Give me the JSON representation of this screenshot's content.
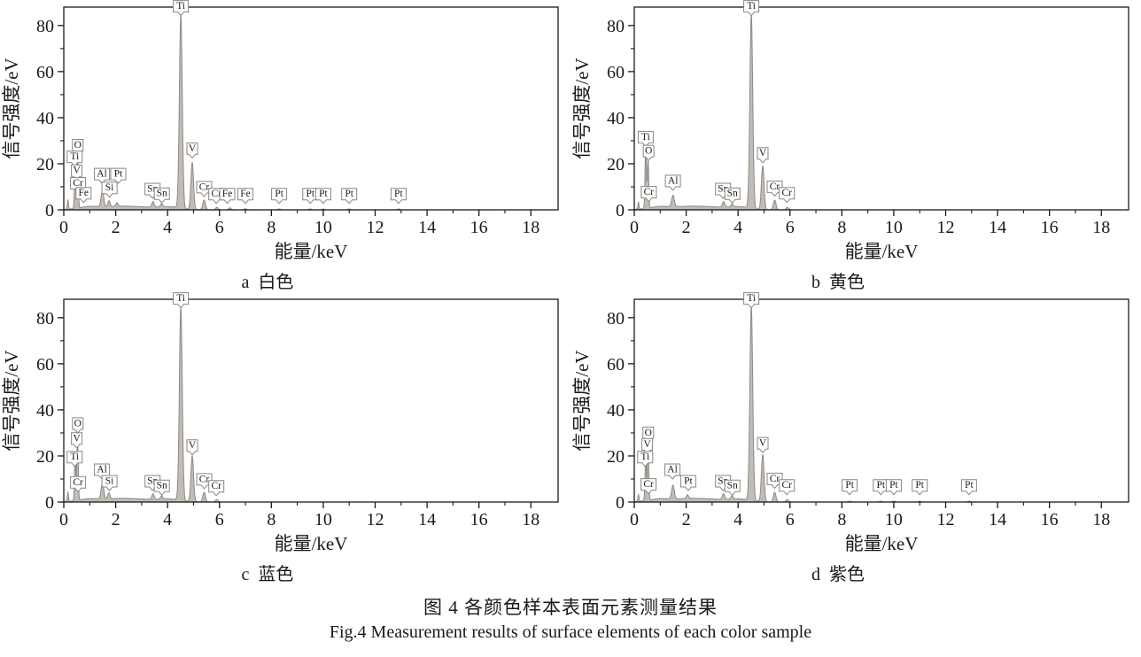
{
  "figure": {
    "caption_zh": "图 4   各颜色样本表面元素测量结果",
    "caption_en": "Fig.4 Measurement results of surface elements of each color sample"
  },
  "colors": {
    "background": "#ffffff",
    "axis_color": "#1a1a1a",
    "text_color": "#1a1a1a",
    "spectrum_fill": "#c2bcb6",
    "spectrum_stroke": "#8f8983",
    "label_box_fill": "#ffffff",
    "label_box_border": "#8a8580"
  },
  "chart_data": [
    {
      "type": "area",
      "panel": "a",
      "subcaption": "a  白色",
      "sample_color_zh": "白色",
      "xlabel": "能量/keV",
      "ylabel": "信号强度/eV",
      "xlim": [
        0,
        19
      ],
      "ylim": [
        0,
        88
      ],
      "x_major_ticks": [
        0,
        2,
        4,
        6,
        8,
        10,
        12,
        14,
        16,
        18
      ],
      "x_minor_ticks": [
        1,
        3,
        5,
        7,
        9,
        11,
        13,
        15,
        17
      ],
      "y_major_ticks": [
        0,
        20,
        40,
        60,
        80
      ],
      "y_minor_ticks": [
        10,
        30,
        50,
        70
      ],
      "peak_labels": [
        {
          "el": "O",
          "x": 0.54,
          "y": 24
        },
        {
          "el": "Ti",
          "x": 0.42,
          "y": 19
        },
        {
          "el": "V",
          "x": 0.5,
          "y": 13
        },
        {
          "el": "Cr",
          "x": 0.55,
          "y": 7.5
        },
        {
          "el": "Fe",
          "x": 0.76,
          "y": 3.2
        },
        {
          "el": "Al",
          "x": 1.47,
          "y": 11.5
        },
        {
          "el": "Si",
          "x": 1.76,
          "y": 5.5
        },
        {
          "el": "Pt",
          "x": 2.1,
          "y": 11.5
        },
        {
          "el": "Sn",
          "x": 3.42,
          "y": 5
        },
        {
          "el": "Sn",
          "x": 3.78,
          "y": 3
        },
        {
          "el": "Ti",
          "x": 4.51,
          "y": 84.3
        },
        {
          "el": "V",
          "x": 4.95,
          "y": 22.5
        },
        {
          "el": "Cr",
          "x": 5.41,
          "y": 5.8
        },
        {
          "el": "Cr",
          "x": 5.88,
          "y": 2.8
        },
        {
          "el": "Fe",
          "x": 6.3,
          "y": 2.8
        },
        {
          "el": "Fe",
          "x": 7.0,
          "y": 2.8
        },
        {
          "el": "Pt",
          "x": 8.3,
          "y": 2.8
        },
        {
          "el": "Pt",
          "x": 9.5,
          "y": 2.8
        },
        {
          "el": "Pt",
          "x": 10.0,
          "y": 2.8
        },
        {
          "el": "Pt",
          "x": 11.0,
          "y": 2.8
        },
        {
          "el": "Pt",
          "x": 12.9,
          "y": 2.8
        }
      ],
      "curve_peaks": [
        {
          "x": 0.16,
          "h": 4,
          "w": 0.02
        },
        {
          "x": 0.44,
          "h": 21,
          "w": 0.026
        },
        {
          "x": 0.53,
          "h": 26,
          "w": 0.026
        },
        {
          "x": 1.49,
          "h": 7,
          "w": 0.05
        },
        {
          "x": 1.74,
          "h": 2.6,
          "w": 0.04
        },
        {
          "x": 2.05,
          "h": 1.6,
          "w": 0.04
        },
        {
          "x": 3.44,
          "h": 2.4,
          "w": 0.045
        },
        {
          "x": 3.77,
          "h": 1.4,
          "w": 0.04
        },
        {
          "x": 4.51,
          "h": 84,
          "w": 0.055
        },
        {
          "x": 4.95,
          "h": 20.5,
          "w": 0.05
        },
        {
          "x": 5.41,
          "h": 4.2,
          "w": 0.05
        },
        {
          "x": 5.9,
          "h": 1.1,
          "w": 0.05
        },
        {
          "x": 6.4,
          "h": 0.9,
          "w": 0.05
        },
        {
          "x": 7.0,
          "h": 0.5,
          "w": 0.05
        },
        {
          "x": 8.3,
          "h": 0.4,
          "w": 0.05
        },
        {
          "x": 9.5,
          "h": 0.4,
          "w": 0.05
        },
        {
          "x": 10.0,
          "h": 0.4,
          "w": 0.05
        },
        {
          "x": 11.0,
          "h": 0.4,
          "w": 0.05
        },
        {
          "x": 12.9,
          "h": 0.4,
          "w": 0.05
        }
      ],
      "background_bumps": [
        {
          "x": 2.3,
          "h": 1.6,
          "w": 1.15
        },
        {
          "x": 0.95,
          "h": 0.7,
          "w": 0.3
        },
        {
          "x": 4.1,
          "h": 0.9,
          "w": 0.4
        }
      ]
    },
    {
      "type": "area",
      "panel": "b",
      "subcaption": "b  黄色",
      "sample_color_zh": "黄色",
      "xlabel": "能量/keV",
      "ylabel": "信号强度/eV",
      "xlim": [
        0,
        19
      ],
      "ylim": [
        0,
        88
      ],
      "x_major_ticks": [
        0,
        2,
        4,
        6,
        8,
        10,
        12,
        14,
        16,
        18
      ],
      "x_minor_ticks": [
        1,
        3,
        5,
        7,
        9,
        11,
        13,
        15,
        17
      ],
      "y_major_ticks": [
        0,
        20,
        40,
        60,
        80
      ],
      "y_minor_ticks": [
        10,
        30,
        50,
        70
      ],
      "peak_labels": [
        {
          "el": "Ti",
          "x": 0.44,
          "y": 27.5
        },
        {
          "el": "O",
          "x": 0.55,
          "y": 21.5
        },
        {
          "el": "Cr",
          "x": 0.56,
          "y": 3.6
        },
        {
          "el": "Al",
          "x": 1.49,
          "y": 8.5
        },
        {
          "el": "Sn",
          "x": 3.42,
          "y": 5
        },
        {
          "el": "Sn",
          "x": 3.78,
          "y": 3
        },
        {
          "el": "Ti",
          "x": 4.51,
          "y": 84.3
        },
        {
          "el": "V",
          "x": 4.95,
          "y": 20.5
        },
        {
          "el": "Cr",
          "x": 5.41,
          "y": 6
        },
        {
          "el": "Cr",
          "x": 5.88,
          "y": 3.2
        }
      ],
      "curve_peaks": [
        {
          "x": 0.16,
          "h": 3,
          "w": 0.02
        },
        {
          "x": 0.44,
          "h": 27,
          "w": 0.026
        },
        {
          "x": 0.53,
          "h": 22,
          "w": 0.026
        },
        {
          "x": 1.49,
          "h": 5,
          "w": 0.05
        },
        {
          "x": 3.44,
          "h": 2.4,
          "w": 0.045
        },
        {
          "x": 3.77,
          "h": 1.4,
          "w": 0.04
        },
        {
          "x": 4.51,
          "h": 84,
          "w": 0.055
        },
        {
          "x": 4.95,
          "h": 19,
          "w": 0.05
        },
        {
          "x": 5.41,
          "h": 4.2,
          "w": 0.05
        },
        {
          "x": 5.9,
          "h": 1.1,
          "w": 0.05
        }
      ],
      "background_bumps": [
        {
          "x": 2.3,
          "h": 1.6,
          "w": 1.15
        },
        {
          "x": 0.95,
          "h": 0.7,
          "w": 0.3
        },
        {
          "x": 4.1,
          "h": 0.9,
          "w": 0.4
        }
      ]
    },
    {
      "type": "area",
      "panel": "c",
      "subcaption": "c  蓝色",
      "sample_color_zh": "蓝色",
      "xlabel": "能量/keV",
      "ylabel": "信号强度/eV",
      "xlim": [
        0,
        19
      ],
      "ylim": [
        0,
        88
      ],
      "x_major_ticks": [
        0,
        2,
        4,
        6,
        8,
        10,
        12,
        14,
        16,
        18
      ],
      "x_minor_ticks": [
        1,
        3,
        5,
        7,
        9,
        11,
        13,
        15,
        17
      ],
      "y_major_ticks": [
        0,
        20,
        40,
        60,
        80
      ],
      "y_minor_ticks": [
        10,
        30,
        50,
        70
      ],
      "peak_labels": [
        {
          "el": "O",
          "x": 0.54,
          "y": 30
        },
        {
          "el": "V",
          "x": 0.5,
          "y": 23.5
        },
        {
          "el": "Ti",
          "x": 0.42,
          "y": 15.5
        },
        {
          "el": "Cr",
          "x": 0.55,
          "y": 4.5
        },
        {
          "el": "Al",
          "x": 1.47,
          "y": 10
        },
        {
          "el": "Si",
          "x": 1.76,
          "y": 5
        },
        {
          "el": "Sn",
          "x": 3.42,
          "y": 5
        },
        {
          "el": "Sn",
          "x": 3.78,
          "y": 3
        },
        {
          "el": "Ti",
          "x": 4.51,
          "y": 84.3
        },
        {
          "el": "V",
          "x": 4.95,
          "y": 20.5
        },
        {
          "el": "Cr",
          "x": 5.41,
          "y": 5.8
        },
        {
          "el": "Cr",
          "x": 5.88,
          "y": 2.8
        }
      ],
      "curve_peaks": [
        {
          "x": 0.16,
          "h": 4,
          "w": 0.02
        },
        {
          "x": 0.44,
          "h": 19,
          "w": 0.026
        },
        {
          "x": 0.53,
          "h": 28,
          "w": 0.026
        },
        {
          "x": 1.49,
          "h": 7,
          "w": 0.05
        },
        {
          "x": 1.74,
          "h": 2.6,
          "w": 0.04
        },
        {
          "x": 3.44,
          "h": 2.4,
          "w": 0.045
        },
        {
          "x": 3.77,
          "h": 1.4,
          "w": 0.04
        },
        {
          "x": 4.51,
          "h": 84,
          "w": 0.055
        },
        {
          "x": 4.95,
          "h": 20,
          "w": 0.05
        },
        {
          "x": 5.41,
          "h": 4.2,
          "w": 0.05
        },
        {
          "x": 5.9,
          "h": 1.1,
          "w": 0.05
        }
      ],
      "background_bumps": [
        {
          "x": 2.3,
          "h": 1.6,
          "w": 1.15
        },
        {
          "x": 0.95,
          "h": 0.7,
          "w": 0.3
        },
        {
          "x": 4.1,
          "h": 0.9,
          "w": 0.4
        }
      ]
    },
    {
      "type": "area",
      "panel": "d",
      "subcaption": "d  紫色",
      "sample_color_zh": "紫色",
      "xlabel": "能量/keV",
      "ylabel": "信号强度/eV",
      "xlim": [
        0,
        19
      ],
      "ylim": [
        0,
        88
      ],
      "x_major_ticks": [
        0,
        2,
        4,
        6,
        8,
        10,
        12,
        14,
        16,
        18
      ],
      "x_minor_ticks": [
        1,
        3,
        5,
        7,
        9,
        11,
        13,
        15,
        17
      ],
      "y_major_ticks": [
        0,
        20,
        40,
        60,
        80
      ],
      "y_minor_ticks": [
        10,
        30,
        50,
        70
      ],
      "peak_labels": [
        {
          "el": "O",
          "x": 0.54,
          "y": 26
        },
        {
          "el": "V",
          "x": 0.5,
          "y": 21
        },
        {
          "el": "Ti",
          "x": 0.42,
          "y": 15.5
        },
        {
          "el": "Cr",
          "x": 0.55,
          "y": 3.6
        },
        {
          "el": "Al",
          "x": 1.47,
          "y": 10
        },
        {
          "el": "Pt",
          "x": 2.08,
          "y": 5
        },
        {
          "el": "Sn",
          "x": 3.42,
          "y": 5
        },
        {
          "el": "Sn",
          "x": 3.78,
          "y": 3
        },
        {
          "el": "Ti",
          "x": 4.51,
          "y": 84.3
        },
        {
          "el": "V",
          "x": 4.95,
          "y": 21.5
        },
        {
          "el": "Cr",
          "x": 5.41,
          "y": 6
        },
        {
          "el": "Cr",
          "x": 5.88,
          "y": 3.2
        },
        {
          "el": "Pt",
          "x": 8.3,
          "y": 3.2
        },
        {
          "el": "Pt",
          "x": 9.5,
          "y": 3.2
        },
        {
          "el": "Pt",
          "x": 10.0,
          "y": 3.2
        },
        {
          "el": "Pt",
          "x": 11.0,
          "y": 3.2
        },
        {
          "el": "Pt",
          "x": 12.9,
          "y": 3.2
        }
      ],
      "curve_peaks": [
        {
          "x": 0.16,
          "h": 3,
          "w": 0.02
        },
        {
          "x": 0.44,
          "h": 18,
          "w": 0.026
        },
        {
          "x": 0.53,
          "h": 25,
          "w": 0.026
        },
        {
          "x": 1.49,
          "h": 6,
          "w": 0.05
        },
        {
          "x": 2.05,
          "h": 1.6,
          "w": 0.04
        },
        {
          "x": 3.44,
          "h": 2.4,
          "w": 0.045
        },
        {
          "x": 3.77,
          "h": 1.4,
          "w": 0.04
        },
        {
          "x": 4.51,
          "h": 84,
          "w": 0.055
        },
        {
          "x": 4.95,
          "h": 20.5,
          "w": 0.05
        },
        {
          "x": 5.41,
          "h": 4.2,
          "w": 0.05
        },
        {
          "x": 5.9,
          "h": 1.1,
          "w": 0.05
        },
        {
          "x": 8.3,
          "h": 0.4,
          "w": 0.05
        },
        {
          "x": 9.5,
          "h": 0.4,
          "w": 0.05
        },
        {
          "x": 10.0,
          "h": 0.4,
          "w": 0.05
        },
        {
          "x": 11.0,
          "h": 0.4,
          "w": 0.05
        },
        {
          "x": 12.9,
          "h": 0.4,
          "w": 0.05
        }
      ],
      "background_bumps": [
        {
          "x": 2.3,
          "h": 1.6,
          "w": 1.15
        },
        {
          "x": 0.95,
          "h": 0.7,
          "w": 0.3
        },
        {
          "x": 4.1,
          "h": 0.9,
          "w": 0.4
        }
      ]
    }
  ]
}
